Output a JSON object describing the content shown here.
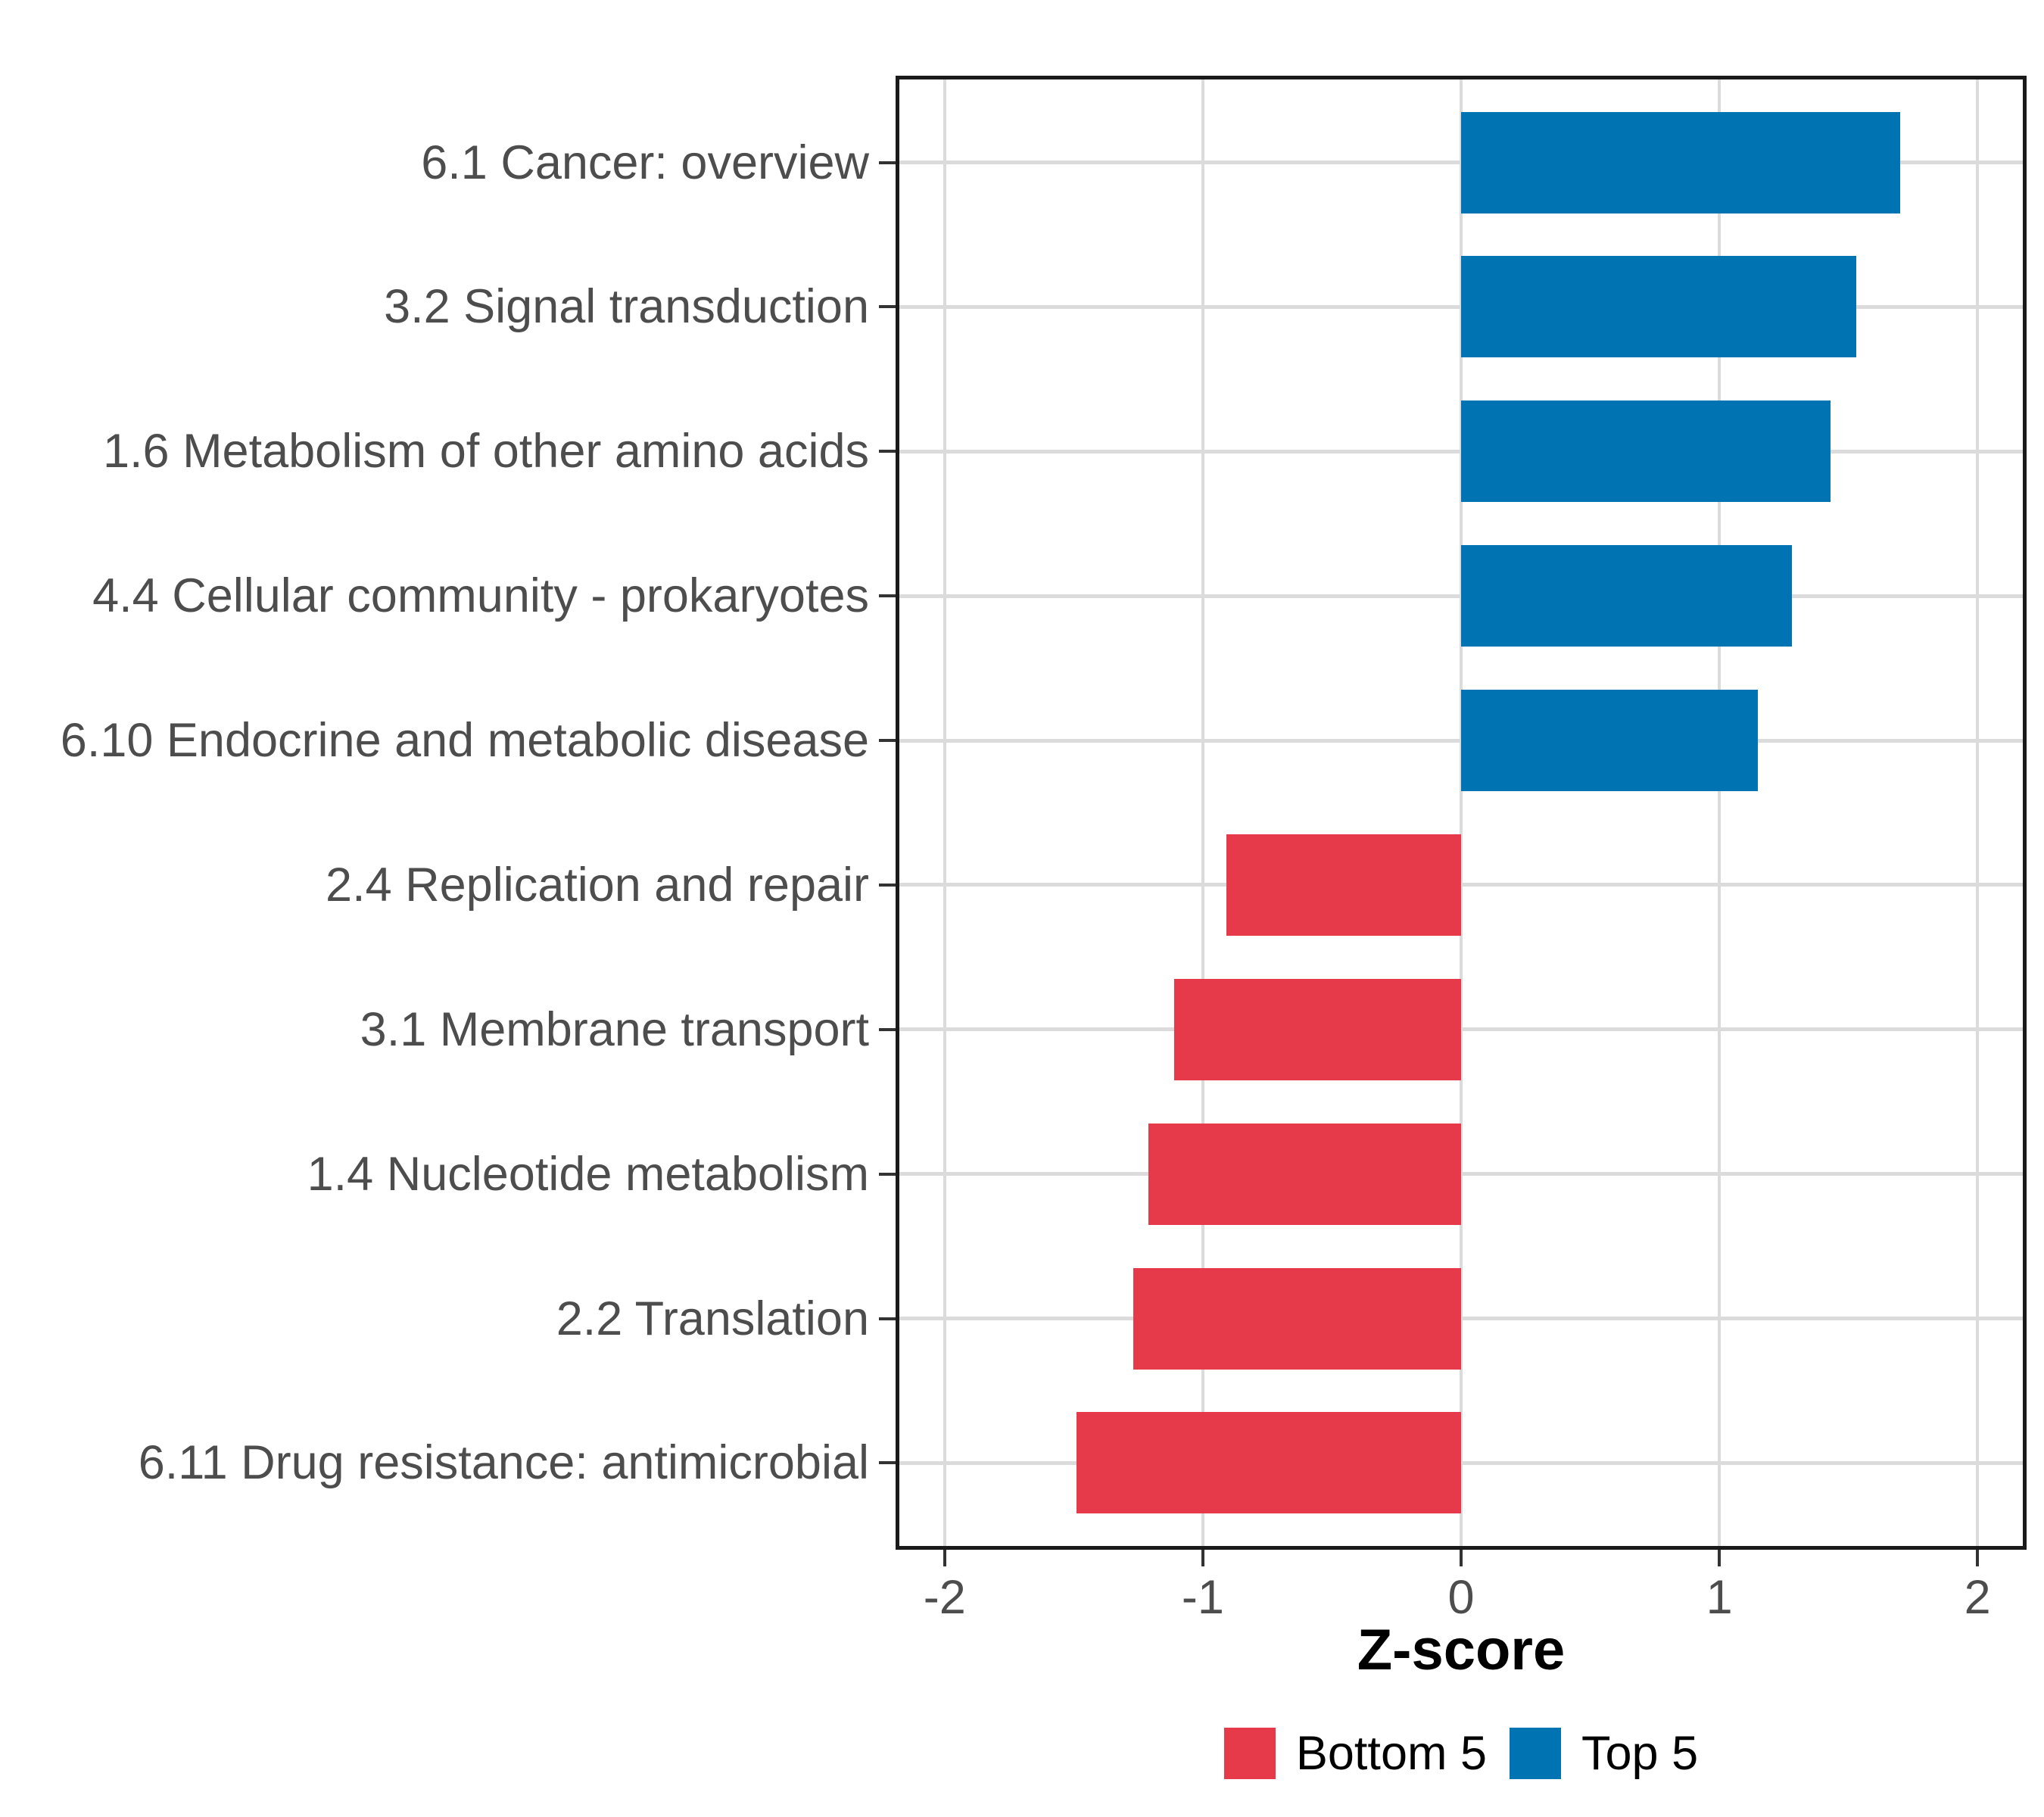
{
  "figure": {
    "background": "#ffffff"
  },
  "chart_data": {
    "type": "bar",
    "orientation": "horizontal",
    "title": "",
    "xlabel": "Z-score",
    "ylabel": "",
    "categories": [
      "6.1 Cancer: overview",
      "3.2 Signal transduction",
      "1.6 Metabolism of other amino acids",
      "4.4 Cellular community - prokaryotes",
      "6.10 Endocrine and metabolic disease",
      "2.4 Replication and repair",
      "3.1 Membrane transport",
      "1.4 Nucleotide metabolism",
      "2.2 Translation",
      "6.11 Drug resistance: antimicrobial"
    ],
    "values": [
      1.7,
      1.53,
      1.43,
      1.28,
      1.15,
      -0.91,
      -1.11,
      -1.21,
      -1.27,
      -1.49
    ],
    "groups": [
      "Top 5",
      "Top 5",
      "Top 5",
      "Top 5",
      "Top 5",
      "Bottom 5",
      "Bottom 5",
      "Bottom 5",
      "Bottom 5",
      "Bottom 5"
    ],
    "series": [
      {
        "name": "Bottom 5",
        "color": "#E6394A"
      },
      {
        "name": "Top 5",
        "color": "#0074B3"
      }
    ],
    "x_ticks": [
      -2,
      -1,
      0,
      1,
      2
    ],
    "x_tick_labels": [
      "-2",
      "-1",
      "0",
      "1",
      "2"
    ],
    "xlim": [
      -2.19,
      2.19
    ],
    "bar_width": 0.7,
    "grid": true,
    "grid_color": "#dbdbdb",
    "axis_text_color": "#4d4d4d",
    "legend_position": "bottom",
    "legend": [
      {
        "label": "Bottom 5",
        "color": "#E6394A"
      },
      {
        "label": "Top 5",
        "color": "#0074B3"
      }
    ]
  }
}
